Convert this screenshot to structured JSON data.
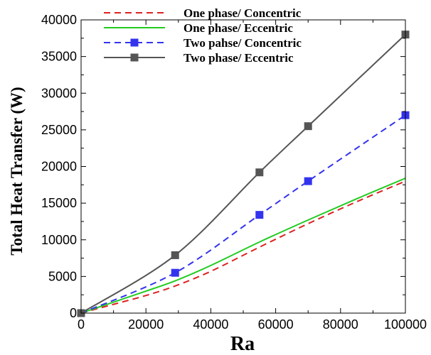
{
  "chart_data": {
    "type": "line",
    "title": "",
    "xlabel": "Ra",
    "ylabel": "Total Heat Transfer (W)",
    "xlim": [
      0,
      100000
    ],
    "ylim": [
      0,
      40000
    ],
    "xticks": [
      0,
      20000,
      40000,
      60000,
      80000,
      100000
    ],
    "yticks": [
      0,
      5000,
      10000,
      15000,
      20000,
      25000,
      30000,
      35000,
      40000
    ],
    "xtick_labels": [
      "0",
      "20000",
      "40000",
      "60000",
      "80000",
      "100000"
    ],
    "ytick_labels": [
      "0",
      "5000",
      "10000",
      "15000",
      "20000",
      "25000",
      "30000",
      "35000",
      "40000"
    ],
    "grid": false,
    "legend_position": "top-left",
    "series": [
      {
        "name": "One phase/ Concentric",
        "color": "#dd2222",
        "line_style": "dashed",
        "marker": "none",
        "x": [
          0,
          10000,
          20000,
          29000,
          40000,
          55000,
          70000,
          85000,
          100000
        ],
        "y": [
          0,
          1200,
          2400,
          3700,
          5700,
          9000,
          12200,
          15200,
          18000
        ]
      },
      {
        "name": "One phase/ Eccentric",
        "color": "#22cc22",
        "line_style": "solid",
        "marker": "none",
        "x": [
          0,
          10000,
          20000,
          29000,
          40000,
          55000,
          70000,
          85000,
          100000
        ],
        "y": [
          0,
          1500,
          3000,
          4400,
          6500,
          9700,
          12700,
          15600,
          18400
        ]
      },
      {
        "name": "Two pahse/ Concentric",
        "color": "#3333ee",
        "line_style": "dashed",
        "marker": "square",
        "x": [
          0,
          29000,
          55000,
          70000,
          100000
        ],
        "y": [
          0,
          5500,
          13400,
          18000,
          27000
        ]
      },
      {
        "name": "Two phase/ Eccentric",
        "color": "#555555",
        "line_style": "solid",
        "marker": "square",
        "x": [
          0,
          29000,
          55000,
          70000,
          100000
        ],
        "y": [
          0,
          7900,
          19200,
          25500,
          38000
        ]
      }
    ]
  }
}
